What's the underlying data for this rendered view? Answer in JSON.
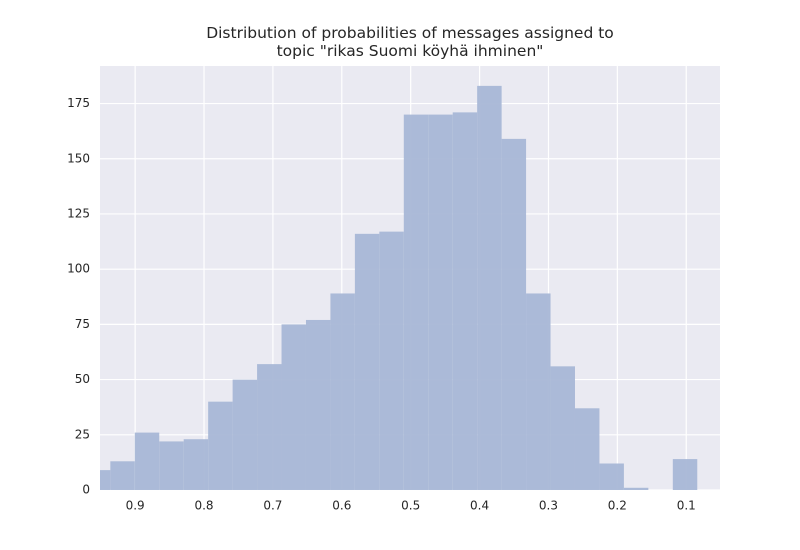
{
  "chart_data": {
    "type": "histogram",
    "title": "Distribution of probabilities of messages assigned to\ntopic \"rikas Suomi köyhä ihminen\"",
    "bins": [
      0.084,
      0.1195,
      0.155,
      0.1905,
      0.226,
      0.2615,
      0.297,
      0.3325,
      0.368,
      0.4035,
      0.439,
      0.4745,
      0.51,
      0.5455,
      0.581,
      0.6165,
      0.652,
      0.6875,
      0.723,
      0.7585,
      0.794,
      0.8295,
      0.865,
      0.9005,
      0.936,
      0.9715
    ],
    "values": [
      14,
      0,
      1,
      12,
      37,
      56,
      89,
      159,
      183,
      171,
      170,
      170,
      117,
      116,
      89,
      77,
      75,
      57,
      50,
      40,
      23,
      22,
      26,
      13,
      9
    ],
    "color": "#a8b7d6",
    "xlim": [
      0.951,
      0.051
    ],
    "xticks": [
      0.9,
      0.8,
      0.7,
      0.6,
      0.5,
      0.4,
      0.3,
      0.2,
      0.1
    ],
    "ylim": [
      0,
      192
    ],
    "yticks": [
      0,
      25,
      50,
      75,
      100,
      125,
      150,
      175
    ],
    "grid": true
  }
}
